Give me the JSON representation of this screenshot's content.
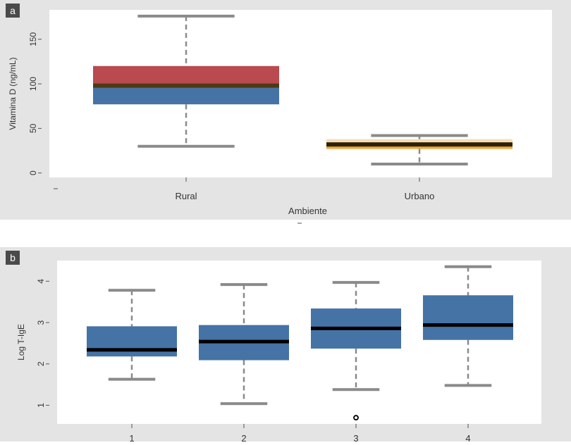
{
  "panels": {
    "a": {
      "tag": "a"
    },
    "b": {
      "tag": "b"
    }
  },
  "colors": {
    "panel_background": "#e4e4e4",
    "plot_background": "#ffffff",
    "box_blue": "#4573a5",
    "box_red": "#b94a4f",
    "box_orange": "#eea53a",
    "box_light_orange": "#f7dcb6",
    "median_a_rural": "#4d3a14",
    "median_a_urban": "#2d2200",
    "median": "#000000",
    "whisker": "#8a8a8a",
    "tag_background": "#4a4a4a",
    "tag_text": "#ffffff"
  },
  "chart_data": [
    {
      "id": "a",
      "type": "box",
      "xlabel": "Ambiente",
      "ylabel": "Vitamina D (ng/mL)",
      "categories": [
        "Rural",
        "Urbano"
      ],
      "yticks": [
        0,
        50,
        100,
        150
      ],
      "ylim": [
        -5,
        183
      ],
      "grid": false,
      "boxes": [
        {
          "category": "Rural",
          "whisker_low": 30,
          "q1": 77,
          "median": 98,
          "q3": 120,
          "whisker_high": 176
        },
        {
          "category": "Urbano",
          "whisker_low": 10,
          "q1": 27,
          "median": 32,
          "q3": 38,
          "whisker_high": 42
        }
      ]
    },
    {
      "id": "b",
      "type": "box",
      "xlabel": "",
      "ylabel": "Log T-IgE",
      "categories": [
        "1",
        "2",
        "3",
        "4"
      ],
      "yticks": [
        1,
        2,
        3,
        4
      ],
      "ylim": [
        0.55,
        4.5
      ],
      "grid": false,
      "boxes": [
        {
          "category": "1",
          "whisker_low": 1.63,
          "q1": 2.18,
          "median": 2.34,
          "q3": 2.91,
          "whisker_high": 3.78
        },
        {
          "category": "2",
          "whisker_low": 1.04,
          "q1": 2.09,
          "median": 2.54,
          "q3": 2.94,
          "whisker_high": 3.92
        },
        {
          "category": "3",
          "whisker_low": 1.38,
          "q1": 2.37,
          "median": 2.86,
          "q3": 3.34,
          "whisker_high": 3.97,
          "outliers": [
            0.7
          ]
        },
        {
          "category": "4",
          "whisker_low": 1.48,
          "q1": 2.58,
          "median": 2.94,
          "q3": 3.66,
          "whisker_high": 4.35
        }
      ]
    }
  ]
}
